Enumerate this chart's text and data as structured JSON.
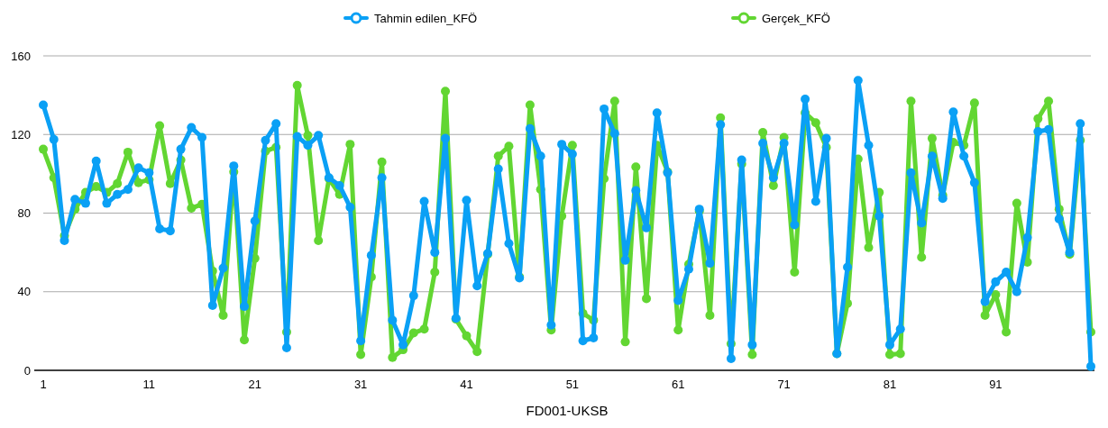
{
  "chart_data": {
    "type": "line",
    "xlabel": "FD001-UKSB",
    "x": [
      1,
      2,
      3,
      4,
      5,
      6,
      7,
      8,
      9,
      10,
      11,
      12,
      13,
      14,
      15,
      16,
      17,
      18,
      19,
      20,
      21,
      22,
      23,
      24,
      25,
      26,
      27,
      28,
      29,
      30,
      31,
      32,
      33,
      34,
      35,
      36,
      37,
      38,
      39,
      40,
      41,
      42,
      43,
      44,
      45,
      46,
      47,
      48,
      49,
      50,
      51,
      52,
      53,
      54,
      55,
      56,
      57,
      58,
      59,
      60,
      61,
      62,
      63,
      64,
      65,
      66,
      67,
      68,
      69,
      70,
      71,
      72,
      73,
      74,
      75,
      76,
      77,
      78,
      79,
      80,
      81,
      82,
      83,
      84,
      85,
      86,
      87,
      88,
      89,
      90,
      91,
      92,
      93,
      94,
      95,
      96,
      97,
      98,
      99,
      100
    ],
    "xlim": [
      1,
      100
    ],
    "xticks": [
      1,
      11,
      21,
      31,
      41,
      51,
      61,
      71,
      81,
      91
    ],
    "ylim": [
      0,
      160
    ],
    "yticks": [
      0,
      40,
      80,
      120,
      160
    ],
    "grid": "y",
    "legend": "top",
    "marker": "circle",
    "line_style": "solid",
    "series": [
      {
        "name": "Tahmin edilen_KFÖ",
        "color": "#0aa0f5",
        "values": [
          135,
          117.5,
          66,
          87,
          85,
          106.5,
          85,
          89.5,
          92,
          103,
          100.5,
          72,
          71,
          112.5,
          123.5,
          118.5,
          33,
          52,
          104,
          32.5,
          76,
          117,
          125.5,
          11.5,
          119,
          114.5,
          119.5,
          98,
          94,
          83,
          15,
          58.5,
          98,
          25.5,
          13,
          38,
          86,
          60,
          118,
          26.5,
          86.5,
          43,
          59.5,
          102.5,
          64.5,
          47,
          123,
          109,
          23,
          115,
          110,
          15,
          16.5,
          133,
          120.5,
          56,
          91.5,
          72.5,
          131,
          100.5,
          35.5,
          51.5,
          82,
          54.5,
          125,
          6,
          107,
          13,
          115.5,
          98,
          115.5,
          74,
          138,
          86,
          118,
          8.5,
          52.5,
          147.5,
          114.5,
          78.5,
          13,
          21,
          100.5,
          75,
          109,
          87.5,
          131.5,
          109,
          95.5,
          35,
          45,
          50,
          40,
          67.5,
          121.5,
          122.5,
          77,
          60,
          125.5,
          2
        ]
      },
      {
        "name": "Gerçek_KFÖ",
        "color": "#62d632",
        "values": [
          112.5,
          98,
          68.5,
          82,
          90.5,
          93.5,
          90.5,
          95,
          111,
          95.5,
          97,
          124.5,
          95,
          107,
          82.5,
          84.5,
          50.5,
          28,
          101,
          15.5,
          57,
          111.5,
          113.5,
          19.5,
          145,
          119.5,
          66,
          97.5,
          89.5,
          115,
          8,
          47.5,
          106,
          6.5,
          10.5,
          19,
          21,
          50,
          142,
          26,
          17.5,
          9.5,
          59,
          109,
          114,
          47.5,
          135,
          92,
          20.5,
          78.5,
          114.5,
          29,
          25.5,
          97.5,
          137,
          14.5,
          103.5,
          36.5,
          114.5,
          101,
          20.5,
          54,
          81,
          28,
          128.5,
          13.5,
          105,
          8,
          121,
          94,
          118.5,
          50,
          131,
          126,
          113.5,
          8.5,
          34,
          107.5,
          62.5,
          90.5,
          8,
          8.5,
          137,
          57.5,
          118,
          89,
          116,
          114.5,
          136,
          28,
          38.5,
          19.5,
          85,
          55,
          128,
          137,
          82,
          59,
          117,
          19.5
        ]
      }
    ]
  }
}
